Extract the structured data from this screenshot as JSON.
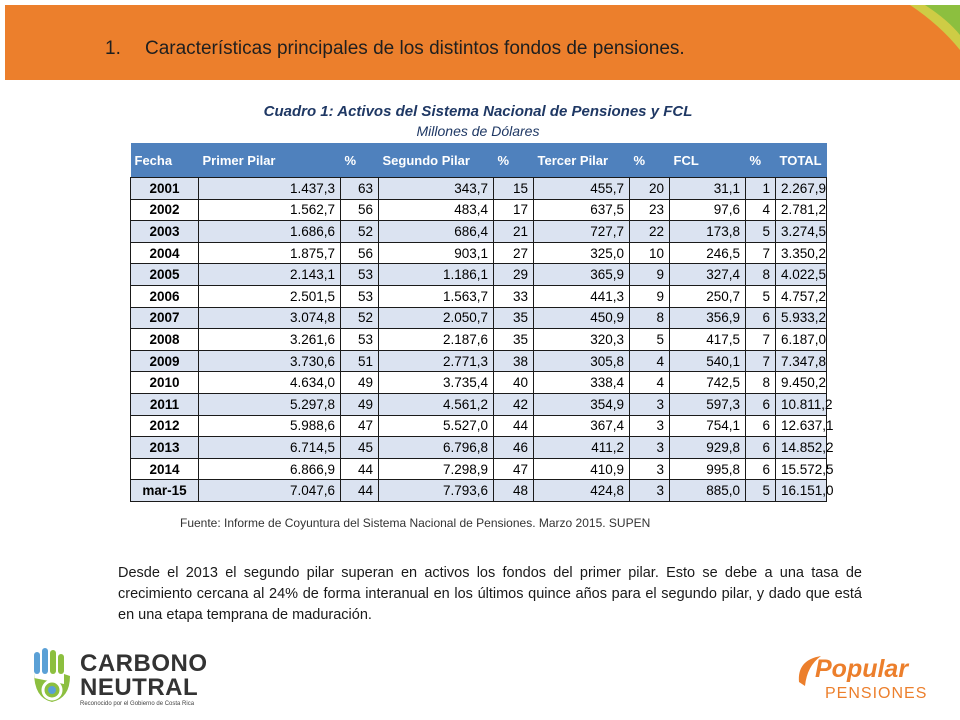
{
  "header": {
    "number": "1.",
    "title": "Características principales de los distintos fondos de pensiones."
  },
  "table": {
    "title": "Cuadro 1: Activos del Sistema Nacional de Pensiones y FCL",
    "subtitle": "Millones de Dólares",
    "columns": [
      "Fecha",
      "Primer Pilar",
      "%",
      "Segundo Pilar",
      "%",
      "Tercer Pilar",
      "%",
      "FCL",
      "%",
      "TOTAL"
    ],
    "rows": [
      [
        "2001",
        "1.437,3",
        "63",
        "343,7",
        "15",
        "455,7",
        "20",
        "31,1",
        "1",
        "2.267,9"
      ],
      [
        "2002",
        "1.562,7",
        "56",
        "483,4",
        "17",
        "637,5",
        "23",
        "97,6",
        "4",
        "2.781,2"
      ],
      [
        "2003",
        "1.686,6",
        "52",
        "686,4",
        "21",
        "727,7",
        "22",
        "173,8",
        "5",
        "3.274,5"
      ],
      [
        "2004",
        "1.875,7",
        "56",
        "903,1",
        "27",
        "325,0",
        "10",
        "246,5",
        "7",
        "3.350,2"
      ],
      [
        "2005",
        "2.143,1",
        "53",
        "1.186,1",
        "29",
        "365,9",
        "9",
        "327,4",
        "8",
        "4.022,5"
      ],
      [
        "2006",
        "2.501,5",
        "53",
        "1.563,7",
        "33",
        "441,3",
        "9",
        "250,7",
        "5",
        "4.757,2"
      ],
      [
        "2007",
        "3.074,8",
        "52",
        "2.050,7",
        "35",
        "450,9",
        "8",
        "356,9",
        "6",
        "5.933,2"
      ],
      [
        "2008",
        "3.261,6",
        "53",
        "2.187,6",
        "35",
        "320,3",
        "5",
        "417,5",
        "7",
        "6.187,0"
      ],
      [
        "2009",
        "3.730,6",
        "51",
        "2.771,3",
        "38",
        "305,8",
        "4",
        "540,1",
        "7",
        "7.347,8"
      ],
      [
        "2010",
        "4.634,0",
        "49",
        "3.735,4",
        "40",
        "338,4",
        "4",
        "742,5",
        "8",
        "9.450,2"
      ],
      [
        "2011",
        "5.297,8",
        "49",
        "4.561,2",
        "42",
        "354,9",
        "3",
        "597,3",
        "6",
        "10.811,2"
      ],
      [
        "2012",
        "5.988,6",
        "47",
        "5.527,0",
        "44",
        "367,4",
        "3",
        "754,1",
        "6",
        "12.637,1"
      ],
      [
        "2013",
        "6.714,5",
        "45",
        "6.796,8",
        "46",
        "411,2",
        "3",
        "929,8",
        "6",
        "14.852,2"
      ],
      [
        "2014",
        "6.866,9",
        "44",
        "7.298,9",
        "47",
        "410,9",
        "3",
        "995,8",
        "6",
        "15.572,5"
      ],
      [
        "mar-15",
        "7.047,6",
        "44",
        "7.793,6",
        "48",
        "424,8",
        "3",
        "885,0",
        "5",
        "16.151,0"
      ]
    ],
    "source": "Fuente: Informe de Coyuntura del Sistema Nacional de Pensiones. Marzo 2015. SUPEN"
  },
  "paragraph": "Desde el 2013 el segundo pilar superan en activos los fondos del primer pilar. Esto se debe a una tasa de crecimiento cercana al 24% de forma interanual en los últimos quince años para el segundo pilar, y dado que está en una etapa temprana de maduración.",
  "logos": {
    "left": {
      "line1": "CARBONO",
      "line2": "NEUTRAL",
      "tagline": "Reconocido por el Gobierno de Costa Rica"
    },
    "right": {
      "brand": "Popular",
      "sub": "PENSIONES"
    }
  },
  "colors": {
    "header_orange": "#ec7f2c",
    "table_header_blue": "#4f81bd",
    "row_shade": "#dbe3f1",
    "caption_navy": "#1f3864"
  }
}
